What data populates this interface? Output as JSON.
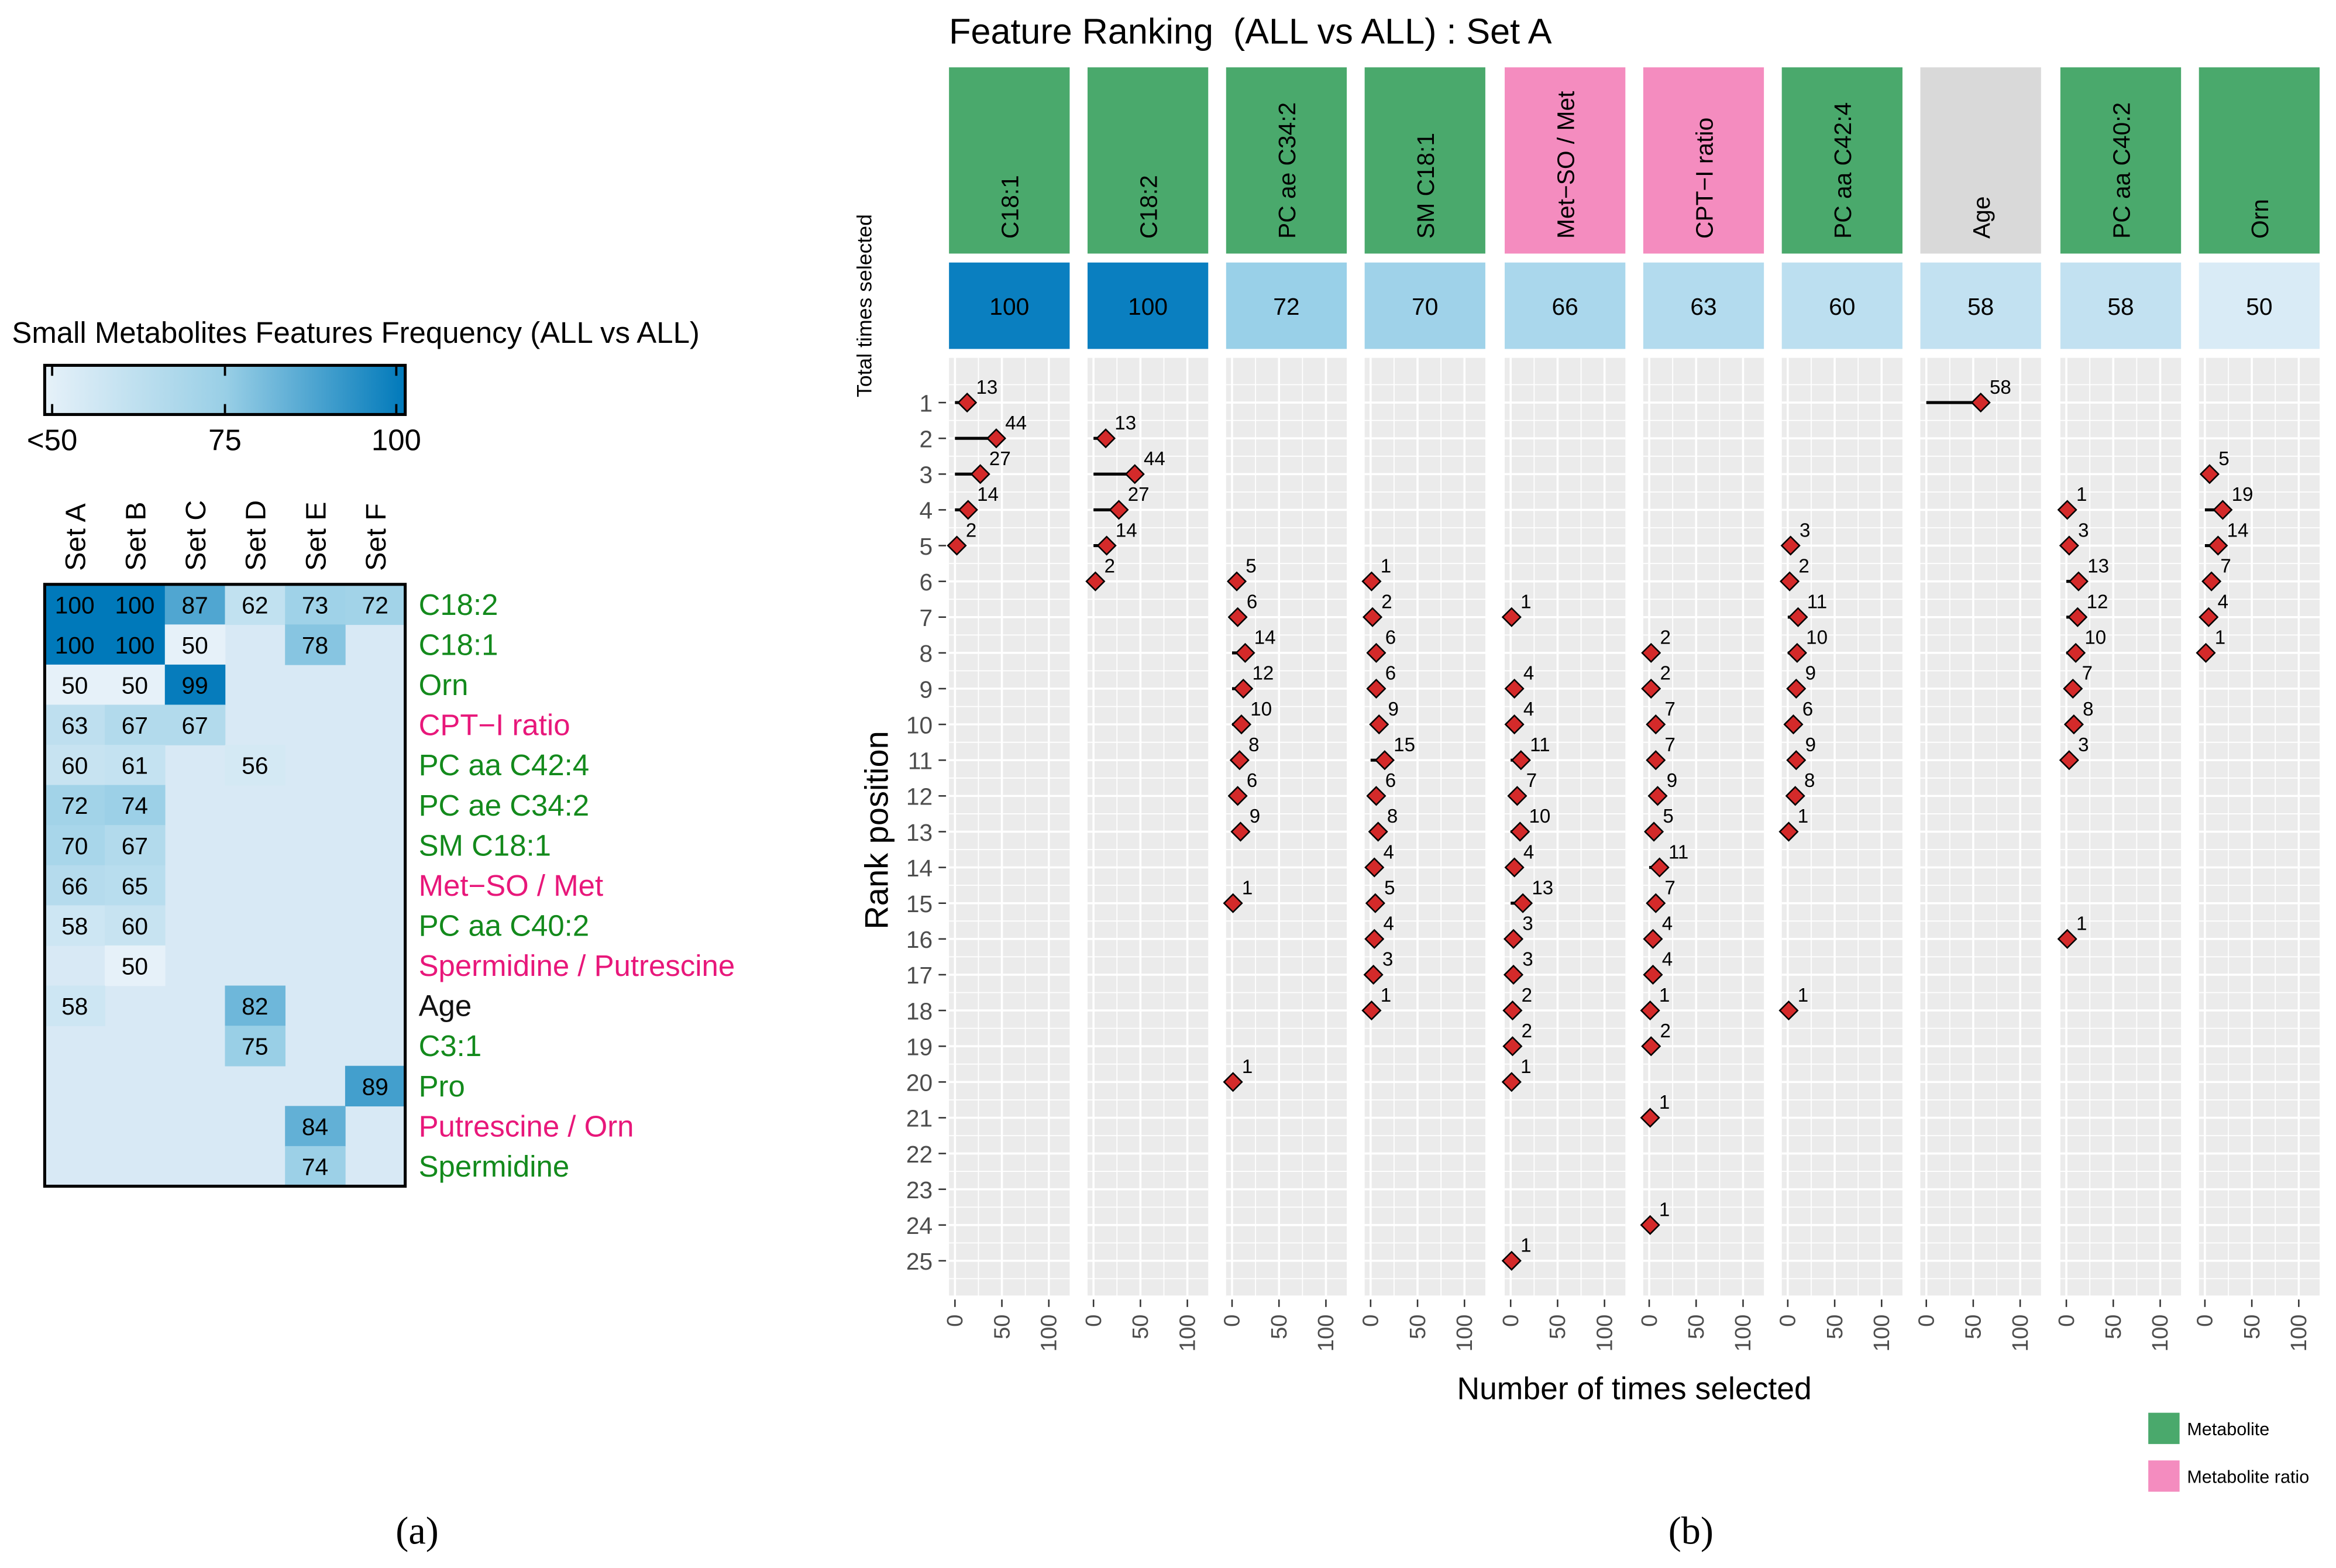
{
  "panel_labels": {
    "a": "(a)",
    "b": "(b)"
  },
  "colors": {
    "metabolite": "#4aa96c",
    "ratio": "#f48cbf",
    "clinical": "#d9d9d9",
    "label_metabolite": "#138a1c",
    "label_ratio": "#e8177a",
    "label_clinical": "#111111",
    "scale_low": "#e6f1f9",
    "scale_mid": "#99cfe6",
    "scale_high": "#0079ba",
    "heat_blank": "#d8e9f5",
    "point": "#d42a2a",
    "panel_bg": "#ebebeb"
  },
  "chart_data": [
    {
      "type": "heatmap",
      "title": "Small Metabolites Features Frequency (ALL vs ALL)",
      "colorbar": {
        "ticks": [
          "<50",
          "75",
          "100"
        ],
        "range": [
          50,
          100
        ]
      },
      "columns": [
        "Set A",
        "Set B",
        "Set C",
        "Set D",
        "Set E",
        "Set F"
      ],
      "rows": [
        {
          "label": "C18:2",
          "kind": "metabolite",
          "values": [
            100,
            100,
            87,
            62,
            73,
            72
          ]
        },
        {
          "label": "C18:1",
          "kind": "metabolite",
          "values": [
            100,
            100,
            50,
            null,
            78,
            null
          ]
        },
        {
          "label": "Orn",
          "kind": "metabolite",
          "values": [
            50,
            50,
            99,
            null,
            null,
            null
          ]
        },
        {
          "label": "CPT−I ratio",
          "kind": "ratio",
          "values": [
            63,
            67,
            67,
            null,
            null,
            null
          ]
        },
        {
          "label": "PC aa C42:4",
          "kind": "metabolite",
          "values": [
            60,
            61,
            null,
            56,
            null,
            null
          ]
        },
        {
          "label": "PC ae C34:2",
          "kind": "metabolite",
          "values": [
            72,
            74,
            null,
            null,
            null,
            null
          ]
        },
        {
          "label": "SM C18:1",
          "kind": "metabolite",
          "values": [
            70,
            67,
            null,
            null,
            null,
            null
          ]
        },
        {
          "label": "Met−SO / Met",
          "kind": "ratio",
          "values": [
            66,
            65,
            null,
            null,
            null,
            null
          ]
        },
        {
          "label": "PC aa C40:2",
          "kind": "metabolite",
          "values": [
            58,
            60,
            null,
            null,
            null,
            null
          ]
        },
        {
          "label": "Spermidine / Putrescine",
          "kind": "ratio",
          "values": [
            null,
            50,
            null,
            null,
            null,
            null
          ]
        },
        {
          "label": "Age",
          "kind": "clinical",
          "values": [
            58,
            null,
            null,
            82,
            null,
            null
          ]
        },
        {
          "label": "C3:1",
          "kind": "metabolite",
          "values": [
            null,
            null,
            null,
            75,
            null,
            null
          ]
        },
        {
          "label": "Pro",
          "kind": "metabolite",
          "values": [
            null,
            null,
            null,
            null,
            null,
            89
          ]
        },
        {
          "label": "Putrescine / Orn",
          "kind": "ratio",
          "values": [
            null,
            null,
            null,
            null,
            84,
            null
          ]
        },
        {
          "label": "Spermidine",
          "kind": "metabolite",
          "values": [
            null,
            null,
            null,
            null,
            74,
            null
          ]
        }
      ]
    },
    {
      "type": "scatter",
      "title": "Feature Ranking  (ALL vs ALL) : Set A",
      "xlabel": "Number of times selected",
      "ylabel": "Rank position",
      "total_label": "Total times selected",
      "x_ticks": [
        "0",
        "50",
        "100"
      ],
      "xlim": [
        0,
        100
      ],
      "ylim": [
        1,
        25
      ],
      "y_ticks": [
        "1",
        "2",
        "3",
        "4",
        "5",
        "6",
        "7",
        "8",
        "9",
        "10",
        "11",
        "12",
        "13",
        "14",
        "15",
        "16",
        "17",
        "18",
        "19",
        "20",
        "21",
        "22",
        "23",
        "24",
        "25"
      ],
      "legend": {
        "position": "bottom-right",
        "items": [
          {
            "label": "Metabolite",
            "kind": "metabolite"
          },
          {
            "label": "Metabolite ratio",
            "kind": "ratio"
          }
        ]
      },
      "features": [
        {
          "name": "C18:1",
          "kind": "metabolite",
          "total": 100,
          "points": [
            [
              1,
              13
            ],
            [
              2,
              44
            ],
            [
              3,
              27
            ],
            [
              4,
              14
            ],
            [
              5,
              2
            ]
          ]
        },
        {
          "name": "C18:2",
          "kind": "metabolite",
          "total": 100,
          "points": [
            [
              2,
              13
            ],
            [
              3,
              44
            ],
            [
              4,
              27
            ],
            [
              5,
              14
            ],
            [
              6,
              2
            ]
          ]
        },
        {
          "name": "PC ae C34:2",
          "kind": "metabolite",
          "total": 72,
          "points": [
            [
              6,
              5
            ],
            [
              7,
              6
            ],
            [
              8,
              14
            ],
            [
              9,
              12
            ],
            [
              10,
              10
            ],
            [
              11,
              8
            ],
            [
              12,
              6
            ],
            [
              13,
              9
            ],
            [
              15,
              1
            ],
            [
              20,
              1
            ]
          ]
        },
        {
          "name": "SM C18:1",
          "kind": "metabolite",
          "total": 70,
          "points": [
            [
              6,
              1
            ],
            [
              7,
              2
            ],
            [
              8,
              6
            ],
            [
              9,
              6
            ],
            [
              10,
              9
            ],
            [
              11,
              15
            ],
            [
              12,
              6
            ],
            [
              13,
              8
            ],
            [
              14,
              4
            ],
            [
              15,
              5
            ],
            [
              16,
              4
            ],
            [
              17,
              3
            ],
            [
              18,
              1
            ]
          ]
        },
        {
          "name": "Met−SO / Met",
          "kind": "ratio",
          "total": 66,
          "points": [
            [
              7,
              1
            ],
            [
              9,
              4
            ],
            [
              10,
              4
            ],
            [
              11,
              11
            ],
            [
              12,
              7
            ],
            [
              13,
              10
            ],
            [
              14,
              4
            ],
            [
              15,
              13
            ],
            [
              16,
              3
            ],
            [
              17,
              3
            ],
            [
              18,
              2
            ],
            [
              19,
              2
            ],
            [
              20,
              1
            ],
            [
              25,
              1
            ]
          ]
        },
        {
          "name": "CPT−I ratio",
          "kind": "ratio",
          "total": 63,
          "points": [
            [
              8,
              2
            ],
            [
              9,
              2
            ],
            [
              10,
              7
            ],
            [
              11,
              7
            ],
            [
              12,
              9
            ],
            [
              13,
              5
            ],
            [
              14,
              11
            ],
            [
              15,
              7
            ],
            [
              16,
              4
            ],
            [
              17,
              4
            ],
            [
              18,
              1
            ],
            [
              19,
              2
            ],
            [
              21,
              1
            ],
            [
              24,
              1
            ]
          ]
        },
        {
          "name": "PC aa C42:4",
          "kind": "metabolite",
          "total": 60,
          "points": [
            [
              5,
              3
            ],
            [
              6,
              2
            ],
            [
              7,
              11
            ],
            [
              8,
              10
            ],
            [
              9,
              9
            ],
            [
              10,
              6
            ],
            [
              11,
              9
            ],
            [
              12,
              8
            ],
            [
              13,
              1
            ],
            [
              18,
              1
            ]
          ]
        },
        {
          "name": "Age",
          "kind": "clinical",
          "total": 58,
          "points": [
            [
              1,
              58
            ]
          ]
        },
        {
          "name": "PC aa C40:2",
          "kind": "metabolite",
          "total": 58,
          "points": [
            [
              4,
              1
            ],
            [
              5,
              3
            ],
            [
              6,
              13
            ],
            [
              7,
              12
            ],
            [
              8,
              10
            ],
            [
              9,
              7
            ],
            [
              10,
              8
            ],
            [
              11,
              3
            ],
            [
              16,
              1
            ]
          ]
        },
        {
          "name": "Orn",
          "kind": "metabolite",
          "total": 50,
          "points": [
            [
              3,
              5
            ],
            [
              4,
              19
            ],
            [
              5,
              14
            ],
            [
              6,
              7
            ],
            [
              7,
              4
            ],
            [
              8,
              1
            ]
          ]
        }
      ]
    }
  ]
}
